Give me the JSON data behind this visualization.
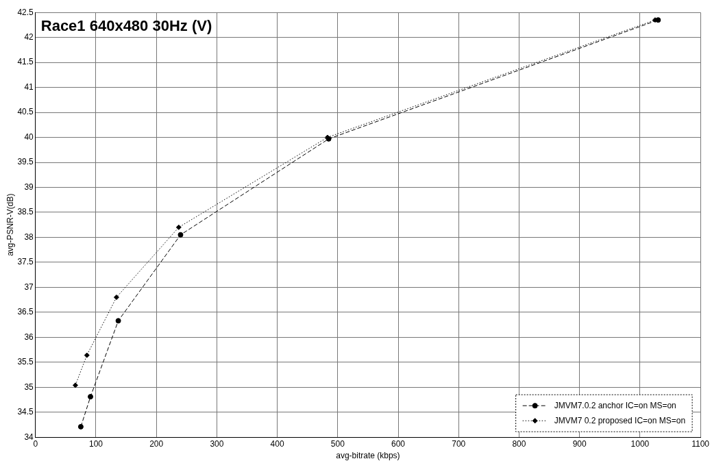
{
  "chart_data": {
    "type": "line",
    "title": "Race1 640x480 30Hz (V)",
    "xlabel": "avg-bitrate (kbps)",
    "ylabel": "avg-PSNR-V(dB)",
    "xlim": [
      0,
      1100
    ],
    "xticks": [
      0,
      100,
      200,
      300,
      400,
      500,
      600,
      700,
      800,
      900,
      1000,
      1100
    ],
    "ylim": [
      34,
      42.5
    ],
    "yticks": [
      34,
      34.5,
      35,
      35.5,
      36,
      36.5,
      37,
      37.5,
      38,
      38.5,
      39,
      39.5,
      40,
      40.5,
      41,
      41.5,
      42,
      42.5
    ],
    "grid": true,
    "legend": "bottom right",
    "series": [
      {
        "name": "JMVM7.0.2 anchor IC=on MS=on",
        "color": "#000000",
        "marker": "circle",
        "line_style": "dashed",
        "x": [
          75,
          91,
          137,
          240,
          485,
          1030
        ],
        "values": [
          34.21,
          34.81,
          36.33,
          38.05,
          39.97,
          42.35
        ]
      },
      {
        "name": "JMVM7 0.2 proposed IC=on MS=on",
        "color": "#000000",
        "marker": "diamond",
        "line_style": "dotted",
        "x": [
          66,
          85,
          134,
          237,
          483,
          1025
        ],
        "values": [
          35.04,
          35.64,
          36.8,
          38.2,
          40.0,
          42.35
        ]
      }
    ]
  }
}
